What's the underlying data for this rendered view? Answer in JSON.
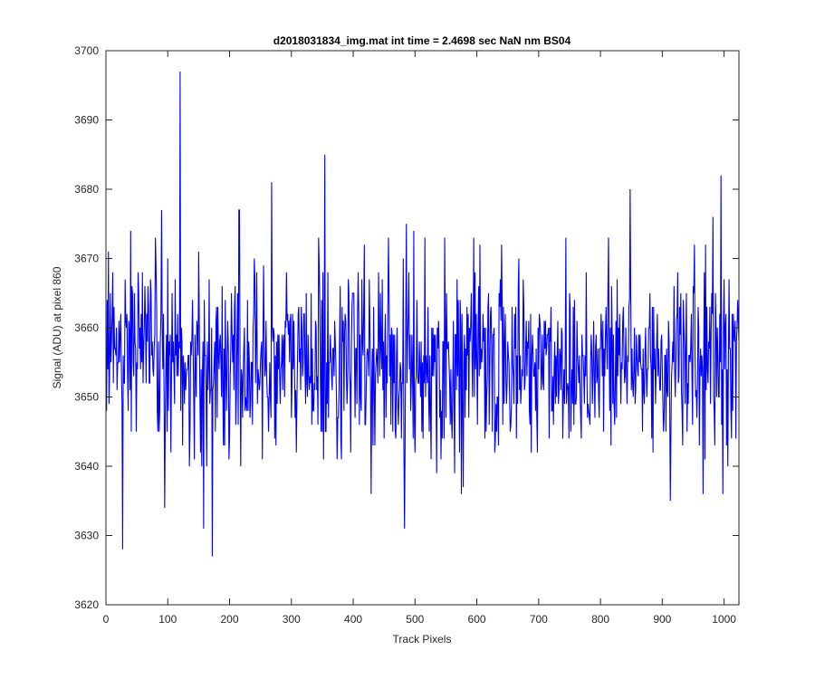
{
  "chart_data": {
    "type": "line",
    "title": "d2018031834_img.mat int time = 2.4698 sec  NaN nm BS04",
    "xlabel": "Track Pixels",
    "ylabel": "Signal (ADU) at pixel 860",
    "xlim": [
      0,
      1024
    ],
    "ylim": [
      3620,
      3700
    ],
    "x_ticks": [
      0,
      100,
      200,
      300,
      400,
      500,
      600,
      700,
      800,
      900,
      1000
    ],
    "y_ticks": [
      3620,
      3630,
      3640,
      3650,
      3660,
      3670,
      3680,
      3690,
      3700
    ],
    "grid": false,
    "line_color": "#0000ff",
    "series": [
      {
        "x_start": 1,
        "x_step": 1,
        "mean": 3655,
        "std": 7,
        "spikes": [
          {
            "x": 27,
            "y": 3628
          },
          {
            "x": 40,
            "y": 3674
          },
          {
            "x": 90,
            "y": 3677
          },
          {
            "x": 120,
            "y": 3697
          },
          {
            "x": 158,
            "y": 3631
          },
          {
            "x": 172,
            "y": 3627
          },
          {
            "x": 216,
            "y": 3677
          },
          {
            "x": 268,
            "y": 3681
          },
          {
            "x": 354,
            "y": 3685
          },
          {
            "x": 483,
            "y": 3631
          },
          {
            "x": 848,
            "y": 3680
          },
          {
            "x": 913,
            "y": 3635
          },
          {
            "x": 995,
            "y": 3682
          }
        ]
      }
    ]
  }
}
